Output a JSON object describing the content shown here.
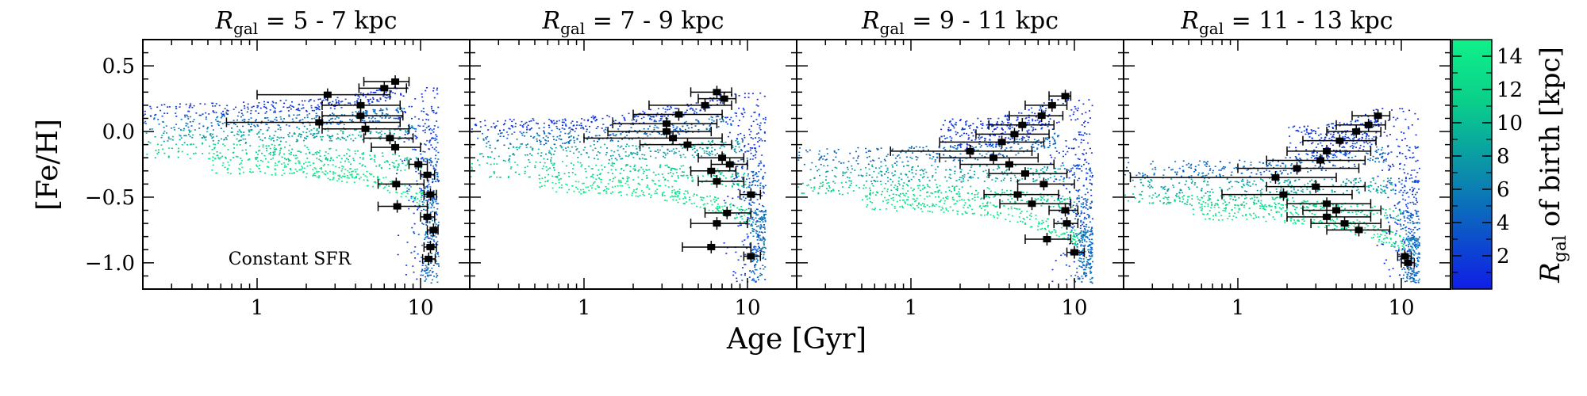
{
  "chart_data": {
    "type": "scatter",
    "xlabel": "Age [Gyr]",
    "ylabel": "[Fe/H]",
    "x_scale": "log",
    "xlim": [
      0.2,
      20
    ],
    "ylim": [
      -1.2,
      0.7
    ],
    "x_ticks": [
      1,
      10
    ],
    "x_tick_labels": [
      "1",
      "10"
    ],
    "y_ticks": [
      0.5,
      0.0,
      -0.5,
      -1.0
    ],
    "y_tick_labels": [
      "0.5",
      "0.0",
      "−0.5",
      "−1.0"
    ],
    "annotation": "Constant SFR",
    "colorbar": {
      "label_main": "R",
      "label_sub": "gal",
      "label_rest": " of birth [kpc]",
      "range": [
        0,
        15
      ],
      "ticks": [
        2,
        4,
        6,
        8,
        10,
        12,
        14
      ],
      "tick_labels": [
        "2",
        "4",
        "6",
        "8",
        "10",
        "12",
        "14"
      ],
      "colors": [
        "#0f1ee6",
        "#0b72b9",
        "#0acf8a",
        "#10f08a"
      ]
    },
    "panels": [
      {
        "title_sym": "R",
        "title_sub": "gal",
        "title_rest": " = 5 - 7 kpc",
        "model_tracks": [
          {
            "start_age": 0.2,
            "plateau_feh": 0.22,
            "end_feh": 0.35,
            "turn_age": 7.0
          },
          {
            "start_age": 0.2,
            "plateau_feh": 0.12,
            "end_feh": 0.2,
            "turn_age": 8.0
          },
          {
            "start_age": 0.2,
            "plateau_feh": 0.02,
            "end_feh": 0.05,
            "turn_age": 9.0
          },
          {
            "start_age": 0.2,
            "plateau_feh": -0.08,
            "end_feh": -0.2,
            "turn_age": 10.0
          },
          {
            "start_age": 0.5,
            "plateau_feh": -0.2,
            "end_feh": -0.45,
            "turn_age": 10.5
          }
        ],
        "points": [
          {
            "age": 7.0,
            "age_lo": 4.5,
            "age_hi": 8.5,
            "feh": 0.38
          },
          {
            "age": 6.0,
            "age_lo": 4.2,
            "age_hi": 8.2,
            "feh": 0.33
          },
          {
            "age": 2.7,
            "age_lo": 1.0,
            "age_hi": 6.5,
            "feh": 0.28
          },
          {
            "age": 4.3,
            "age_lo": 2.5,
            "age_hi": 7.5,
            "feh": 0.2
          },
          {
            "age": 4.3,
            "age_lo": 2.5,
            "age_hi": 7.8,
            "feh": 0.12
          },
          {
            "age": 2.4,
            "age_lo": 0.65,
            "age_hi": 7.5,
            "feh": 0.07
          },
          {
            "age": 4.6,
            "age_lo": 2.5,
            "age_hi": 8.5,
            "feh": 0.02
          },
          {
            "age": 6.5,
            "age_lo": 4.5,
            "age_hi": 9.0,
            "feh": -0.05
          },
          {
            "age": 7.0,
            "age_lo": 5.0,
            "age_hi": 10.0,
            "feh": -0.12
          },
          {
            "age": 9.7,
            "age_lo": 8.5,
            "age_hi": 11.0,
            "feh": -0.25
          },
          {
            "age": 11.0,
            "age_lo": 10.0,
            "age_hi": 12.2,
            "feh": -0.33
          },
          {
            "age": 7.1,
            "age_lo": 5.5,
            "age_hi": 10.5,
            "feh": -0.4
          },
          {
            "age": 11.5,
            "age_lo": 10.5,
            "age_hi": 12.5,
            "feh": -0.48
          },
          {
            "age": 7.2,
            "age_lo": 5.5,
            "age_hi": 11.0,
            "feh": -0.57
          },
          {
            "age": 11.0,
            "age_lo": 10.0,
            "age_hi": 12.2,
            "feh": -0.65
          },
          {
            "age": 12.0,
            "age_lo": 11.0,
            "age_hi": 12.8,
            "feh": -0.75
          },
          {
            "age": 11.5,
            "age_lo": 10.5,
            "age_hi": 12.5,
            "feh": -0.88
          },
          {
            "age": 11.2,
            "age_lo": 10.3,
            "age_hi": 12.3,
            "feh": -0.97
          }
        ]
      },
      {
        "title_sym": "R",
        "title_sub": "gal",
        "title_rest": " = 7 - 9 kpc",
        "model_tracks": [
          {
            "start_age": 0.2,
            "plateau_feh": 0.1,
            "end_feh": 0.3,
            "turn_age": 7.0
          },
          {
            "start_age": 0.2,
            "plateau_feh": 0.0,
            "end_feh": 0.15,
            "turn_age": 8.0
          },
          {
            "start_age": 0.2,
            "plateau_feh": -0.1,
            "end_feh": -0.05,
            "turn_age": 9.0
          },
          {
            "start_age": 0.2,
            "plateau_feh": -0.22,
            "end_feh": -0.3,
            "turn_age": 10.0
          },
          {
            "start_age": 0.5,
            "plateau_feh": -0.35,
            "end_feh": -0.6,
            "turn_age": 10.5
          }
        ],
        "points": [
          {
            "age": 6.5,
            "age_lo": 4.5,
            "age_hi": 8.0,
            "feh": 0.3
          },
          {
            "age": 7.2,
            "age_lo": 5.0,
            "age_hi": 8.5,
            "feh": 0.25
          },
          {
            "age": 5.5,
            "age_lo": 2.5,
            "age_hi": 8.0,
            "feh": 0.2
          },
          {
            "age": 3.8,
            "age_lo": 2.0,
            "age_hi": 7.0,
            "feh": 0.13
          },
          {
            "age": 3.2,
            "age_lo": 1.5,
            "age_hi": 6.5,
            "feh": 0.06
          },
          {
            "age": 3.2,
            "age_lo": 1.4,
            "age_hi": 6.0,
            "feh": 0.0
          },
          {
            "age": 3.5,
            "age_lo": 1.0,
            "age_hi": 7.0,
            "feh": -0.05
          },
          {
            "age": 4.3,
            "age_lo": 2.2,
            "age_hi": 8.0,
            "feh": -0.1
          },
          {
            "age": 7.0,
            "age_lo": 5.0,
            "age_hi": 9.5,
            "feh": -0.2
          },
          {
            "age": 7.8,
            "age_lo": 6.0,
            "age_hi": 10.0,
            "feh": -0.25
          },
          {
            "age": 6.0,
            "age_lo": 4.5,
            "age_hi": 8.5,
            "feh": -0.3
          },
          {
            "age": 6.5,
            "age_lo": 5.0,
            "age_hi": 9.5,
            "feh": -0.38
          },
          {
            "age": 10.5,
            "age_lo": 9.0,
            "age_hi": 12.0,
            "feh": -0.48
          },
          {
            "age": 7.5,
            "age_lo": 5.5,
            "age_hi": 10.5,
            "feh": -0.62
          },
          {
            "age": 6.5,
            "age_lo": 4.5,
            "age_hi": 10.0,
            "feh": -0.7
          },
          {
            "age": 6.0,
            "age_lo": 4.0,
            "age_hi": 10.5,
            "feh": -0.88
          },
          {
            "age": 10.5,
            "age_lo": 9.5,
            "age_hi": 12.0,
            "feh": -0.95
          }
        ]
      },
      {
        "title_sym": "R",
        "title_sub": "gal",
        "title_rest": " = 9 - 11 kpc",
        "model_tracks": [
          {
            "start_age": 1.5,
            "plateau_feh": 0.1,
            "end_feh": 0.25,
            "turn_age": 7.0
          },
          {
            "start_age": 0.2,
            "plateau_feh": -0.12,
            "end_feh": 0.0,
            "turn_age": 8.0
          },
          {
            "start_age": 0.2,
            "plateau_feh": -0.25,
            "end_feh": -0.25,
            "turn_age": 9.0
          },
          {
            "start_age": 0.2,
            "plateau_feh": -0.38,
            "end_feh": -0.5,
            "turn_age": 10.0
          },
          {
            "start_age": 0.5,
            "plateau_feh": -0.48,
            "end_feh": -0.75,
            "turn_age": 10.5
          }
        ],
        "points": [
          {
            "age": 8.8,
            "age_lo": 7.0,
            "age_hi": 9.5,
            "feh": 0.27
          },
          {
            "age": 7.3,
            "age_lo": 5.0,
            "age_hi": 9.0,
            "feh": 0.2
          },
          {
            "age": 6.3,
            "age_lo": 4.0,
            "age_hi": 8.5,
            "feh": 0.12
          },
          {
            "age": 4.8,
            "age_lo": 3.0,
            "age_hi": 7.5,
            "feh": 0.05
          },
          {
            "age": 4.3,
            "age_lo": 2.5,
            "age_hi": 7.0,
            "feh": -0.02
          },
          {
            "age": 3.6,
            "age_lo": 1.5,
            "age_hi": 6.5,
            "feh": -0.08
          },
          {
            "age": 2.3,
            "age_lo": 0.75,
            "age_hi": 5.5,
            "feh": -0.15
          },
          {
            "age": 3.2,
            "age_lo": 1.5,
            "age_hi": 6.0,
            "feh": -0.2
          },
          {
            "age": 4.0,
            "age_lo": 2.0,
            "age_hi": 7.5,
            "feh": -0.25
          },
          {
            "age": 5.0,
            "age_lo": 3.0,
            "age_hi": 9.0,
            "feh": -0.32
          },
          {
            "age": 6.5,
            "age_lo": 4.5,
            "age_hi": 10.0,
            "feh": -0.4
          },
          {
            "age": 4.5,
            "age_lo": 2.8,
            "age_hi": 8.0,
            "feh": -0.48
          },
          {
            "age": 5.5,
            "age_lo": 3.5,
            "age_hi": 9.5,
            "feh": -0.55
          },
          {
            "age": 8.8,
            "age_lo": 7.0,
            "age_hi": 10.5,
            "feh": -0.6
          },
          {
            "age": 9.0,
            "age_lo": 7.5,
            "age_hi": 10.5,
            "feh": -0.7
          },
          {
            "age": 6.8,
            "age_lo": 5.0,
            "age_hi": 9.5,
            "feh": -0.82
          },
          {
            "age": 10.0,
            "age_lo": 9.0,
            "age_hi": 11.5,
            "feh": -0.92
          }
        ]
      },
      {
        "title_sym": "R",
        "title_sub": "gal",
        "title_rest": " = 11 - 13 kpc",
        "model_tracks": [
          {
            "start_age": 2.0,
            "plateau_feh": 0.05,
            "end_feh": 0.18,
            "turn_age": 7.0
          },
          {
            "start_age": 0.2,
            "plateau_feh": -0.22,
            "end_feh": -0.1,
            "turn_age": 8.0
          },
          {
            "start_age": 0.2,
            "plateau_feh": -0.35,
            "end_feh": -0.35,
            "turn_age": 9.0
          },
          {
            "start_age": 0.2,
            "plateau_feh": -0.47,
            "end_feh": -0.6,
            "turn_age": 10.0
          },
          {
            "start_age": 0.5,
            "plateau_feh": -0.55,
            "end_feh": -0.8,
            "turn_age": 10.5
          }
        ],
        "points": [
          {
            "age": 7.2,
            "age_lo": 5.0,
            "age_hi": 8.5,
            "feh": 0.12
          },
          {
            "age": 6.3,
            "age_lo": 4.0,
            "age_hi": 8.0,
            "feh": 0.05
          },
          {
            "age": 5.3,
            "age_lo": 3.5,
            "age_hi": 7.5,
            "feh": 0.0
          },
          {
            "age": 4.2,
            "age_lo": 2.5,
            "age_hi": 7.0,
            "feh": -0.07
          },
          {
            "age": 3.5,
            "age_lo": 2.0,
            "age_hi": 6.5,
            "feh": -0.15
          },
          {
            "age": 3.2,
            "age_lo": 1.5,
            "age_hi": 6.0,
            "feh": -0.22
          },
          {
            "age": 2.3,
            "age_lo": 1.0,
            "age_hi": 5.5,
            "feh": -0.28
          },
          {
            "age": 1.7,
            "age_lo": 0.22,
            "age_hi": 4.0,
            "feh": -0.35
          },
          {
            "age": 3.0,
            "age_lo": 1.5,
            "age_hi": 6.0,
            "feh": -0.42
          },
          {
            "age": 1.9,
            "age_lo": 0.8,
            "age_hi": 5.0,
            "feh": -0.48
          },
          {
            "age": 3.5,
            "age_lo": 2.0,
            "age_hi": 6.5,
            "feh": -0.55
          },
          {
            "age": 4.0,
            "age_lo": 2.5,
            "age_hi": 7.5,
            "feh": -0.6
          },
          {
            "age": 3.5,
            "age_lo": 2.0,
            "age_hi": 6.5,
            "feh": -0.65
          },
          {
            "age": 4.5,
            "age_lo": 2.8,
            "age_hi": 7.5,
            "feh": -0.7
          },
          {
            "age": 5.5,
            "age_lo": 3.5,
            "age_hi": 8.5,
            "feh": -0.75
          },
          {
            "age": 10.5,
            "age_lo": 9.5,
            "age_hi": 11.5,
            "feh": -0.95
          },
          {
            "age": 11.0,
            "age_lo": 10.0,
            "age_hi": 12.0,
            "feh": -1.0
          }
        ]
      }
    ]
  }
}
